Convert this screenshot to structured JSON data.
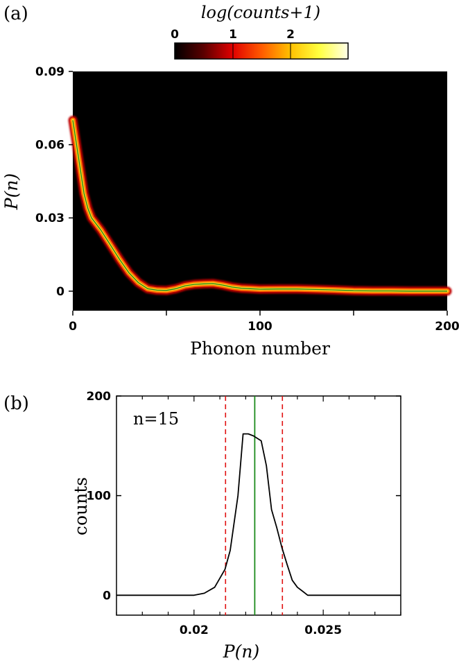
{
  "panel_a": {
    "panel_label": "(a)",
    "colorbar_title": "log(counts+1)",
    "colorbar_ticks": [
      "0",
      "1",
      "2"
    ],
    "colormap": [
      "#000000",
      "#5a0000",
      "#e00000",
      "#ff5a00",
      "#ffc000",
      "#ffff40",
      "#ffffe8"
    ]
  },
  "panel_b": {
    "panel_label": "(b)",
    "annotation": "n=15"
  },
  "colors": {
    "mean_line": "#1a8a1a",
    "bound_line": "#e01010",
    "trace": "#000000"
  },
  "chart_data": [
    {
      "type": "heatmap",
      "xlabel": "Phonon number",
      "ylabel": "P(n)",
      "xlim": [
        0,
        200
      ],
      "ylim": [
        -0.008,
        0.09
      ],
      "x_ticks": [
        0,
        100,
        200
      ],
      "y_ticks": [
        0,
        0.03,
        0.06,
        0.09
      ],
      "x_tick_labels": [
        "0",
        "100",
        "200"
      ],
      "y_tick_labels": [
        "0",
        "0.03",
        "0.06",
        "0.09"
      ],
      "colorbar_range": [
        0,
        3
      ],
      "mean_curve": {
        "x": [
          0,
          2,
          4,
          6,
          8,
          10,
          15,
          20,
          25,
          30,
          35,
          40,
          45,
          50,
          55,
          60,
          65,
          70,
          75,
          80,
          85,
          90,
          95,
          100,
          110,
          120,
          130,
          140,
          150,
          160,
          170,
          180,
          190,
          200
        ],
        "y": [
          0.07,
          0.06,
          0.05,
          0.04,
          0.034,
          0.03,
          0.025,
          0.019,
          0.013,
          0.0075,
          0.0035,
          0.001,
          0.0004,
          0.0003,
          0.001,
          0.0022,
          0.0028,
          0.003,
          0.0031,
          0.0025,
          0.0017,
          0.0012,
          0.001,
          0.0008,
          0.0009,
          0.0009,
          0.0007,
          0.0005,
          0.0002,
          0.0001,
          0.0001,
          0,
          0,
          0
        ]
      }
    },
    {
      "type": "line",
      "xlabel": "P(n)",
      "ylabel": "counts",
      "xlim": [
        0.017,
        0.028
      ],
      "ylim": [
        -20,
        200
      ],
      "x_ticks": [
        0.02,
        0.025
      ],
      "y_ticks": [
        0,
        100,
        200
      ],
      "x_tick_labels": [
        "0.02",
        "0.025"
      ],
      "y_tick_labels": [
        "0",
        "100",
        "200"
      ],
      "x": [
        0.017,
        0.02,
        0.0204,
        0.0208,
        0.0212,
        0.0214,
        0.0217,
        0.0219,
        0.0221,
        0.0223,
        0.0226,
        0.0228,
        0.023,
        0.0232,
        0.0234,
        0.0236,
        0.0238,
        0.024,
        0.0242,
        0.0244,
        0.025,
        0.028
      ],
      "y": [
        0,
        0,
        2,
        8,
        26,
        45,
        100,
        162,
        162,
        160,
        155,
        130,
        86,
        68,
        48,
        31,
        15,
        8,
        4,
        0,
        0,
        0
      ],
      "mean": 0.02235,
      "lower_bound": 0.02122,
      "upper_bound": 0.02342
    }
  ]
}
